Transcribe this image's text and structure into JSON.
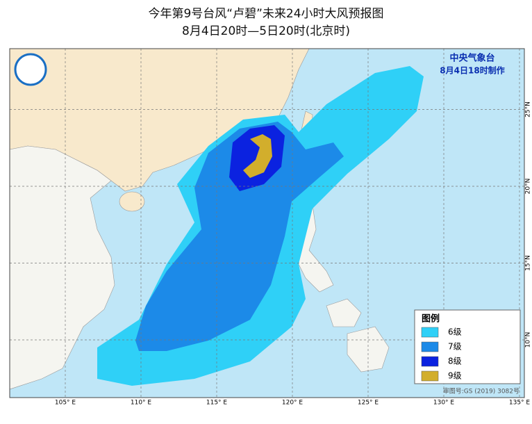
{
  "header": {
    "title": "今年第9号台风“卢碧”未来24小时大风预报图",
    "subtitle": "8月4日20时—5日20时(北京时)"
  },
  "agency": {
    "name": "中央气象台",
    "issued": "8月4日18时制作"
  },
  "legend": {
    "title": "图例",
    "items": [
      {
        "label": "6级",
        "color": "#2fd0f7"
      },
      {
        "label": "7级",
        "color": "#1c8ae8"
      },
      {
        "label": "8级",
        "color": "#0b22e0"
      },
      {
        "label": "9级",
        "color": "#d2ae2c"
      }
    ]
  },
  "grid": {
    "lon": [
      {
        "value": 105,
        "label": "105° E"
      },
      {
        "value": 110,
        "label": "110° E"
      },
      {
        "value": 115,
        "label": "115° E"
      },
      {
        "value": 120,
        "label": "120° E"
      },
      {
        "value": 125,
        "label": "125° E"
      },
      {
        "value": 130,
        "label": "130° E"
      },
      {
        "value": 135,
        "label": "135° E"
      }
    ],
    "lat": [
      {
        "value": 10,
        "label": "10°N"
      },
      {
        "value": 15,
        "label": "15°N"
      },
      {
        "value": 20,
        "label": "20°N"
      },
      {
        "value": 25,
        "label": "25°N"
      }
    ]
  },
  "footer": {
    "review": "审图号:GS (2019) 3082号"
  }
}
